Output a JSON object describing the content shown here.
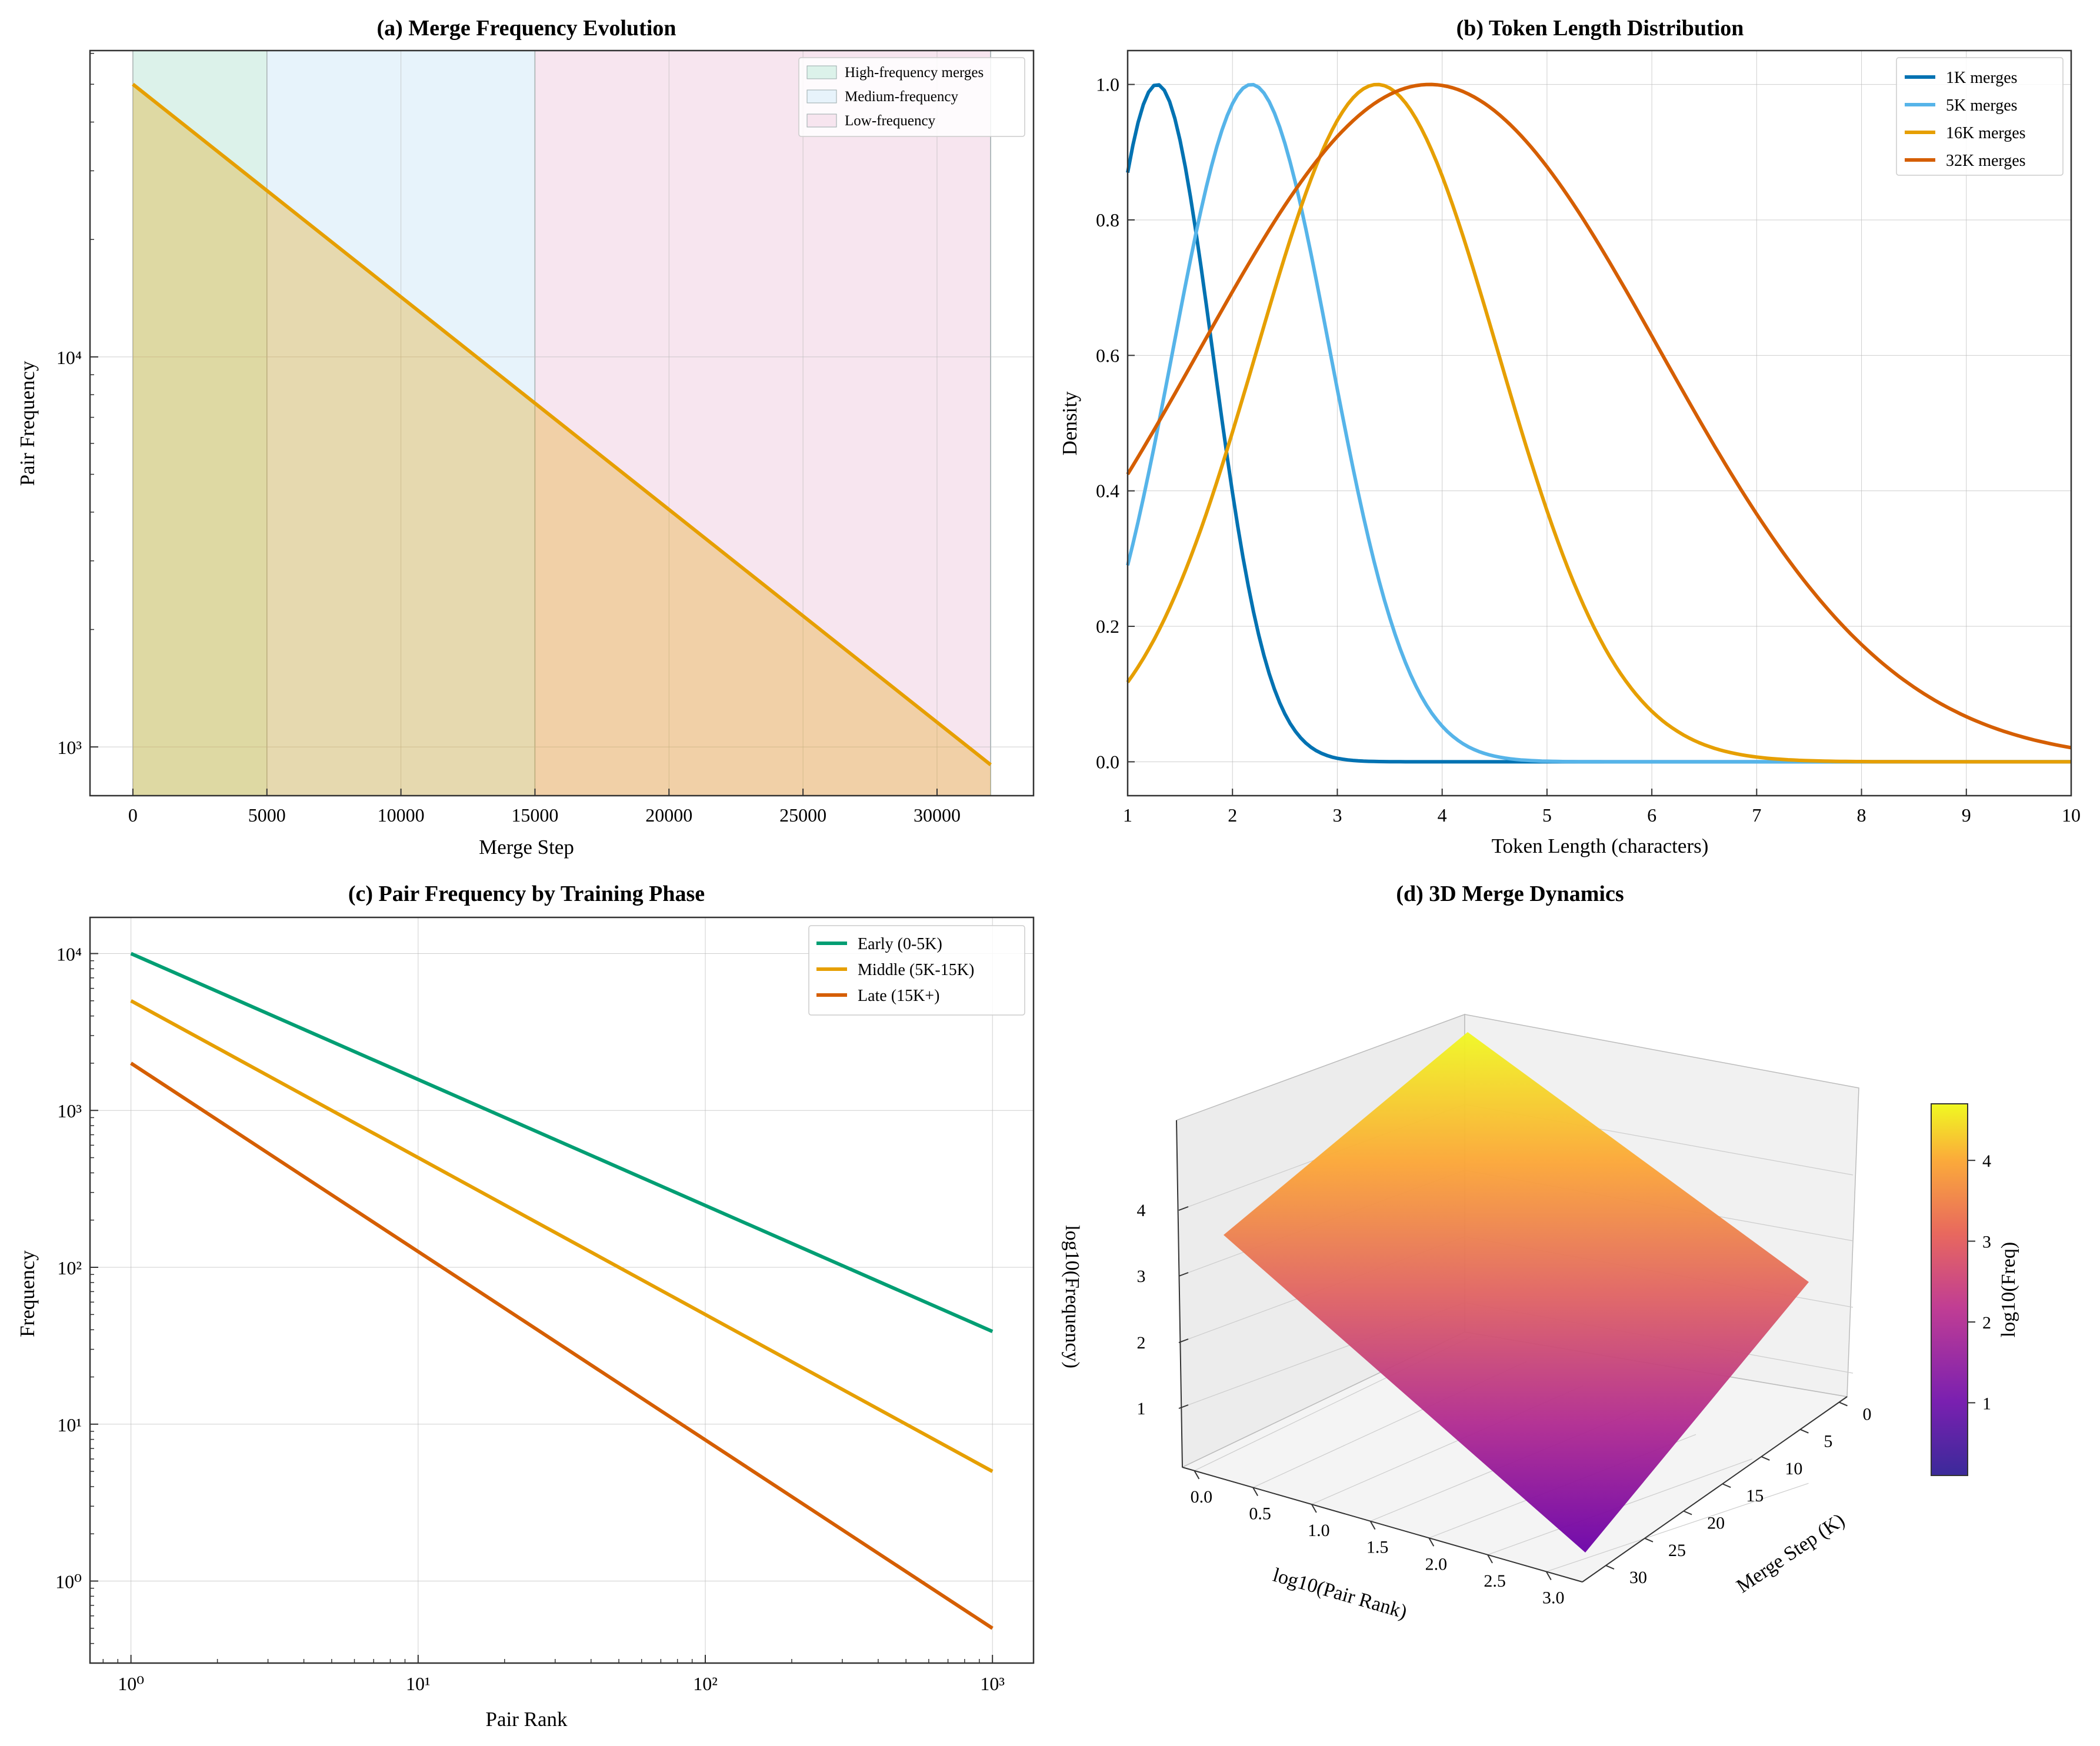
{
  "panels": {
    "a": {
      "title": "(a) Merge Frequency Evolution",
      "xlabel": "Merge Step",
      "ylabel": "Pair Frequency"
    },
    "b": {
      "title": "(b) Token Length Distribution",
      "xlabel": "Token Length (characters)",
      "ylabel": "Density"
    },
    "c": {
      "title": "(c) Pair Frequency by Training Phase",
      "xlabel": "Pair Rank",
      "ylabel": "Frequency"
    },
    "d": {
      "title": "(d) 3D Merge Dynamics",
      "xlabel": "log10(Pair Rank)",
      "ylabel": "Merge Step (K)",
      "zlabel": "log10(Frequency)",
      "colorbar_label": "log10(Freq)"
    }
  },
  "chart_data": [
    {
      "id": "a",
      "type": "area",
      "title": "(a) Merge Frequency Evolution",
      "xlabel": "Merge Step",
      "ylabel": "Pair Frequency",
      "xlim": [
        -1600,
        33600
      ],
      "ylim": [
        750,
        61000
      ],
      "yscale": "log",
      "xticks": [
        0,
        5000,
        10000,
        15000,
        20000,
        25000,
        30000
      ],
      "yticks": [
        1000,
        10000
      ],
      "ytick_labels": [
        "10³",
        "10⁴"
      ],
      "grid": true,
      "legend_position": "top-right",
      "regions": [
        {
          "name": "High-frequency merges",
          "x0": 0,
          "x1": 5000,
          "color": "#dcf2ea"
        },
        {
          "name": "Medium-frequency",
          "x0": 5000,
          "x1": 15000,
          "color": "#e7f3fb"
        },
        {
          "name": "Low-frequency",
          "x0": 15000,
          "x1": 32000,
          "color": "#f7e5ef"
        }
      ],
      "series": [
        {
          "color": "#E69F00",
          "x": [
            0,
            32000
          ],
          "y": [
            50000,
            900
          ],
          "fill_to": 750,
          "fill_color": "#E69F00",
          "fill_alpha": 0.3
        }
      ]
    },
    {
      "id": "b",
      "type": "line",
      "title": "(b) Token Length Distribution",
      "xlabel": "Token Length (characters)",
      "ylabel": "Density",
      "xlim": [
        1,
        10
      ],
      "ylim": [
        -0.05,
        1.05
      ],
      "xticks": [
        1,
        2,
        3,
        4,
        5,
        6,
        7,
        8,
        9,
        10
      ],
      "yticks": [
        0.0,
        0.2,
        0.4,
        0.6,
        0.8,
        1.0
      ],
      "grid": true,
      "legend_position": "top-right",
      "series": [
        {
          "name": "1K merges",
          "color": "#0072B2",
          "mean": 1.28,
          "sd": 0.53
        },
        {
          "name": "5K merges",
          "color": "#56B4E9",
          "mean": 2.18,
          "sd": 0.75
        },
        {
          "name": "16K merges",
          "color": "#E69F00",
          "mean": 3.38,
          "sd": 1.15
        },
        {
          "name": "32K merges",
          "color": "#D55E00",
          "mean": 3.88,
          "sd": 2.2
        }
      ]
    },
    {
      "id": "c",
      "type": "line",
      "title": "(c) Pair Frequency by Training Phase",
      "xlabel": "Pair Rank",
      "ylabel": "Frequency",
      "xscale": "log",
      "yscale": "log",
      "xlim": [
        0.72,
        1390
      ],
      "ylim": [
        0.3,
        17000
      ],
      "xticks": [
        1,
        10,
        100,
        1000
      ],
      "xtick_labels": [
        "10⁰",
        "10¹",
        "10²",
        "10³"
      ],
      "yticks": [
        1,
        10,
        100,
        1000,
        10000
      ],
      "ytick_labels": [
        "10⁰",
        "10¹",
        "10²",
        "10³",
        "10⁴"
      ],
      "grid": true,
      "legend_position": "top-right",
      "series": [
        {
          "name": "Early (0-5K)",
          "color": "#009E73",
          "x": [
            1,
            1000
          ],
          "y": [
            10000,
            39
          ]
        },
        {
          "name": "Middle (5K-15K)",
          "color": "#E69F00",
          "x": [
            1,
            1000
          ],
          "y": [
            5000,
            5
          ]
        },
        {
          "name": "Late (15K+)",
          "color": "#D55E00",
          "x": [
            1,
            1000
          ],
          "y": [
            2000,
            0.5
          ]
        }
      ]
    },
    {
      "id": "d",
      "type": "surface",
      "title": "(d) 3D Merge Dynamics",
      "xlabel": "log10(Pair Rank)",
      "ylabel": "Merge Step (K)",
      "zlabel": "log10(Frequency)",
      "xticks": [
        0.0,
        0.5,
        1.0,
        1.5,
        2.0,
        2.5,
        3.0
      ],
      "yticks": [
        0,
        5,
        10,
        15,
        20,
        25,
        30
      ],
      "zticks": [
        1,
        2,
        3,
        4
      ],
      "corner_values": {
        "rank0_step0": 4.7,
        "rank3_step0": 3.45,
        "rank0_step32": 2.8,
        "rank3_step32": 0.1
      },
      "colormap": "plasma",
      "colorbar": {
        "label": "log10(Freq)",
        "ticks": [
          1,
          2,
          3,
          4
        ],
        "min": 0.1,
        "max": 4.7
      }
    }
  ]
}
